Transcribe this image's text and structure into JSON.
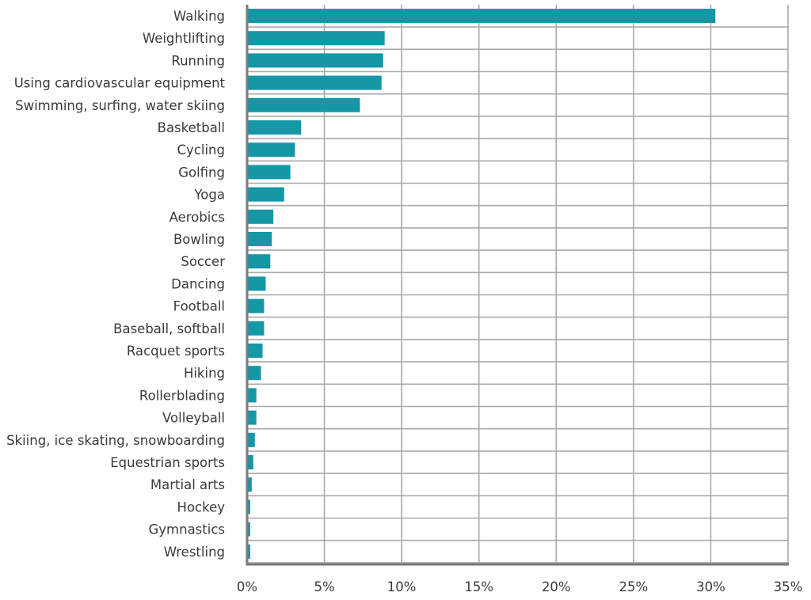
{
  "chart_data": {
    "type": "bar",
    "orientation": "horizontal",
    "categories": [
      "Walking",
      "Weightlifting",
      "Running",
      "Using cardiovascular equipment",
      "Swimming, surfing, water skiing",
      "Basketball",
      "Cycling",
      "Golfing",
      "Yoga",
      "Aerobics",
      "Bowling",
      "Soccer",
      "Dancing",
      "Football",
      "Baseball, softball",
      "Racquet sports",
      "Hiking",
      "Rollerblading",
      "Volleyball",
      "Skiing, ice skating, snowboarding",
      "Equestrian sports",
      "Martial arts",
      "Hockey",
      "Gymnastics",
      "Wrestling"
    ],
    "values": [
      30.3,
      8.9,
      8.8,
      8.7,
      7.3,
      3.5,
      3.1,
      2.8,
      2.4,
      1.7,
      1.6,
      1.5,
      1.2,
      1.1,
      1.1,
      1.0,
      0.9,
      0.6,
      0.6,
      0.5,
      0.4,
      0.3,
      0.2,
      0.2,
      0.2
    ],
    "title": "",
    "xlabel": "",
    "ylabel": "",
    "xlim": [
      0,
      35
    ],
    "xticks": [
      0,
      5,
      10,
      15,
      20,
      25,
      30,
      35
    ],
    "xtick_labels": [
      "0%",
      "5%",
      "10%",
      "15%",
      "20%",
      "25%",
      "30%",
      "35%"
    ],
    "grid": true,
    "legend": "none"
  },
  "colors": {
    "bar": "#1597a6",
    "grid": "#a9a9a9",
    "axis": "#7a7a7a",
    "text": "#3a3a3a"
  }
}
